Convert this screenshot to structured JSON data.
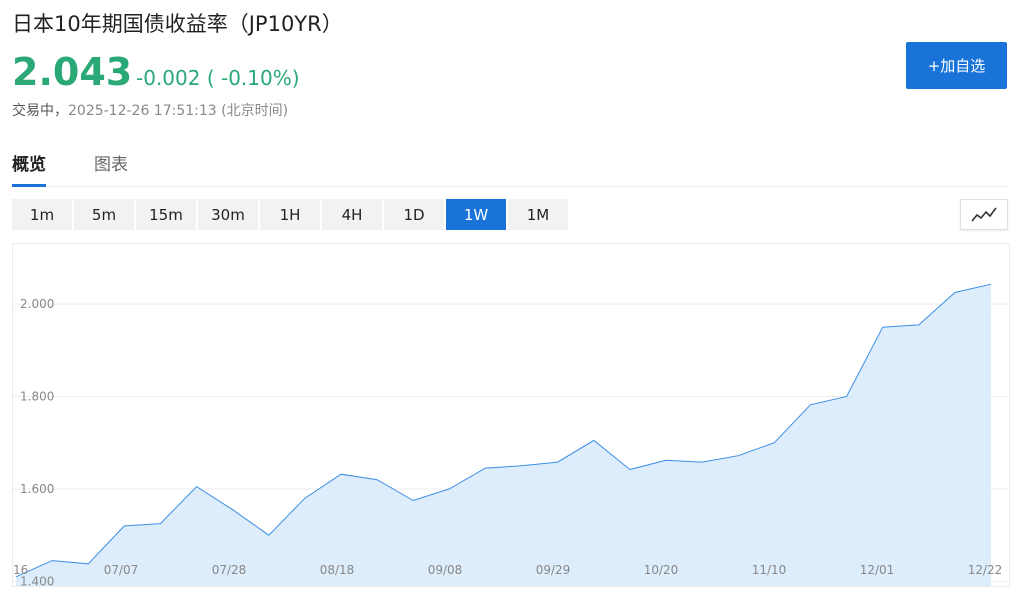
{
  "header": {
    "title": "日本10年期国债收益率（JP10YR）",
    "price": "2.043",
    "change": "-0.002 ( -0.10%)",
    "status_label": "交易中，",
    "status_time": "2025-12-26 17:51:13 (北京时间)",
    "add_button_label": "+加自选"
  },
  "tabs": [
    {
      "label": "概览",
      "active": true
    },
    {
      "label": "图表",
      "active": false
    }
  ],
  "ranges": [
    {
      "label": "1m",
      "active": false
    },
    {
      "label": "5m",
      "active": false
    },
    {
      "label": "15m",
      "active": false
    },
    {
      "label": "30m",
      "active": false
    },
    {
      "label": "1H",
      "active": false
    },
    {
      "label": "4H",
      "active": false
    },
    {
      "label": "1D",
      "active": false
    },
    {
      "label": "1W",
      "active": true
    },
    {
      "label": "1M",
      "active": false
    }
  ],
  "icons": {
    "chart_type": "line-chart-icon"
  },
  "colors": {
    "up_down": "#2aa876",
    "accent": "#1a73d9",
    "line": "#3a8ee6",
    "fill": "#deedfc"
  },
  "chart_data": {
    "type": "area",
    "title": "",
    "xlabel": "",
    "ylabel": "",
    "ylim": [
      1.39,
      2.13
    ],
    "y_ticks": [
      "1.400",
      "1.600",
      "1.800",
      "2.000"
    ],
    "x_ticks": [
      "'16",
      "07/07",
      "07/28",
      "08/18",
      "09/08",
      "09/29",
      "10/20",
      "11/10",
      "12/01",
      "12/22"
    ],
    "grid": true,
    "series": [
      {
        "values": [
          1.41,
          1.445,
          1.438,
          1.52,
          1.525,
          1.605,
          1.555,
          1.5,
          1.58,
          1.632,
          1.62,
          1.575,
          1.6,
          1.645,
          1.65,
          1.658,
          1.705,
          1.642,
          1.662,
          1.658,
          1.672,
          1.7,
          1.782,
          1.8,
          1.95,
          1.955,
          2.025,
          2.043
        ]
      }
    ]
  }
}
